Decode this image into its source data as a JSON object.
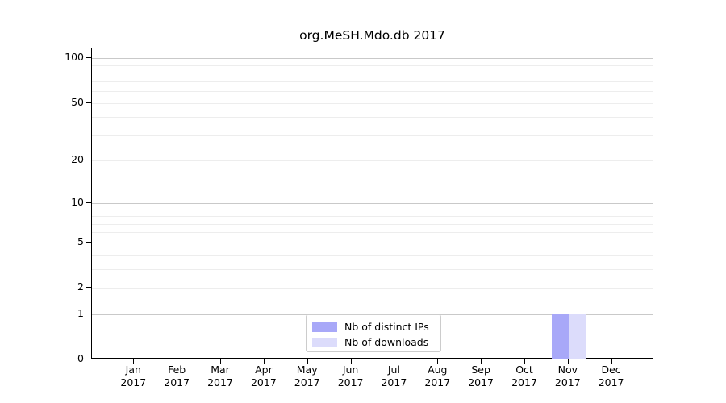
{
  "title": "org.MeSH.Mdo.db 2017",
  "legend": {
    "items": [
      {
        "label": "Nb of distinct IPs",
        "color": "#a8a8f8"
      },
      {
        "label": "Nb of downloads",
        "color": "#dcdcfb"
      }
    ]
  },
  "chart_data": {
    "type": "bar",
    "title": "org.MeSH.Mdo.db 2017",
    "categories": [
      "Jan 2017",
      "Feb 2017",
      "Mar 2017",
      "Apr 2017",
      "May 2017",
      "Jun 2017",
      "Jul 2017",
      "Aug 2017",
      "Sep 2017",
      "Oct 2017",
      "Nov 2017",
      "Dec 2017"
    ],
    "series": [
      {
        "name": "Nb of distinct IPs",
        "color": "#a8a8f8",
        "values": [
          0,
          0,
          0,
          0,
          0,
          0,
          0,
          0,
          0,
          0,
          1,
          0
        ]
      },
      {
        "name": "Nb of downloads",
        "color": "#dcdcfb",
        "values": [
          0,
          0,
          0,
          0,
          0,
          0,
          0,
          0,
          0,
          0,
          1,
          0
        ]
      }
    ],
    "xlabel": "",
    "ylabel": "",
    "yscale": "log1p",
    "yticks": [
      0,
      1,
      2,
      5,
      10,
      20,
      50,
      100
    ],
    "ylim": [
      0,
      116
    ],
    "grid": "horizontal; darker lines at 1, 10, 100; faint log minor lines",
    "legend_position": "inside bottom-center",
    "colors": {
      "grid_major": "#c9c9c9",
      "grid_minor": "#ededed",
      "axis": "#000000",
      "background": "#ffffff"
    }
  }
}
